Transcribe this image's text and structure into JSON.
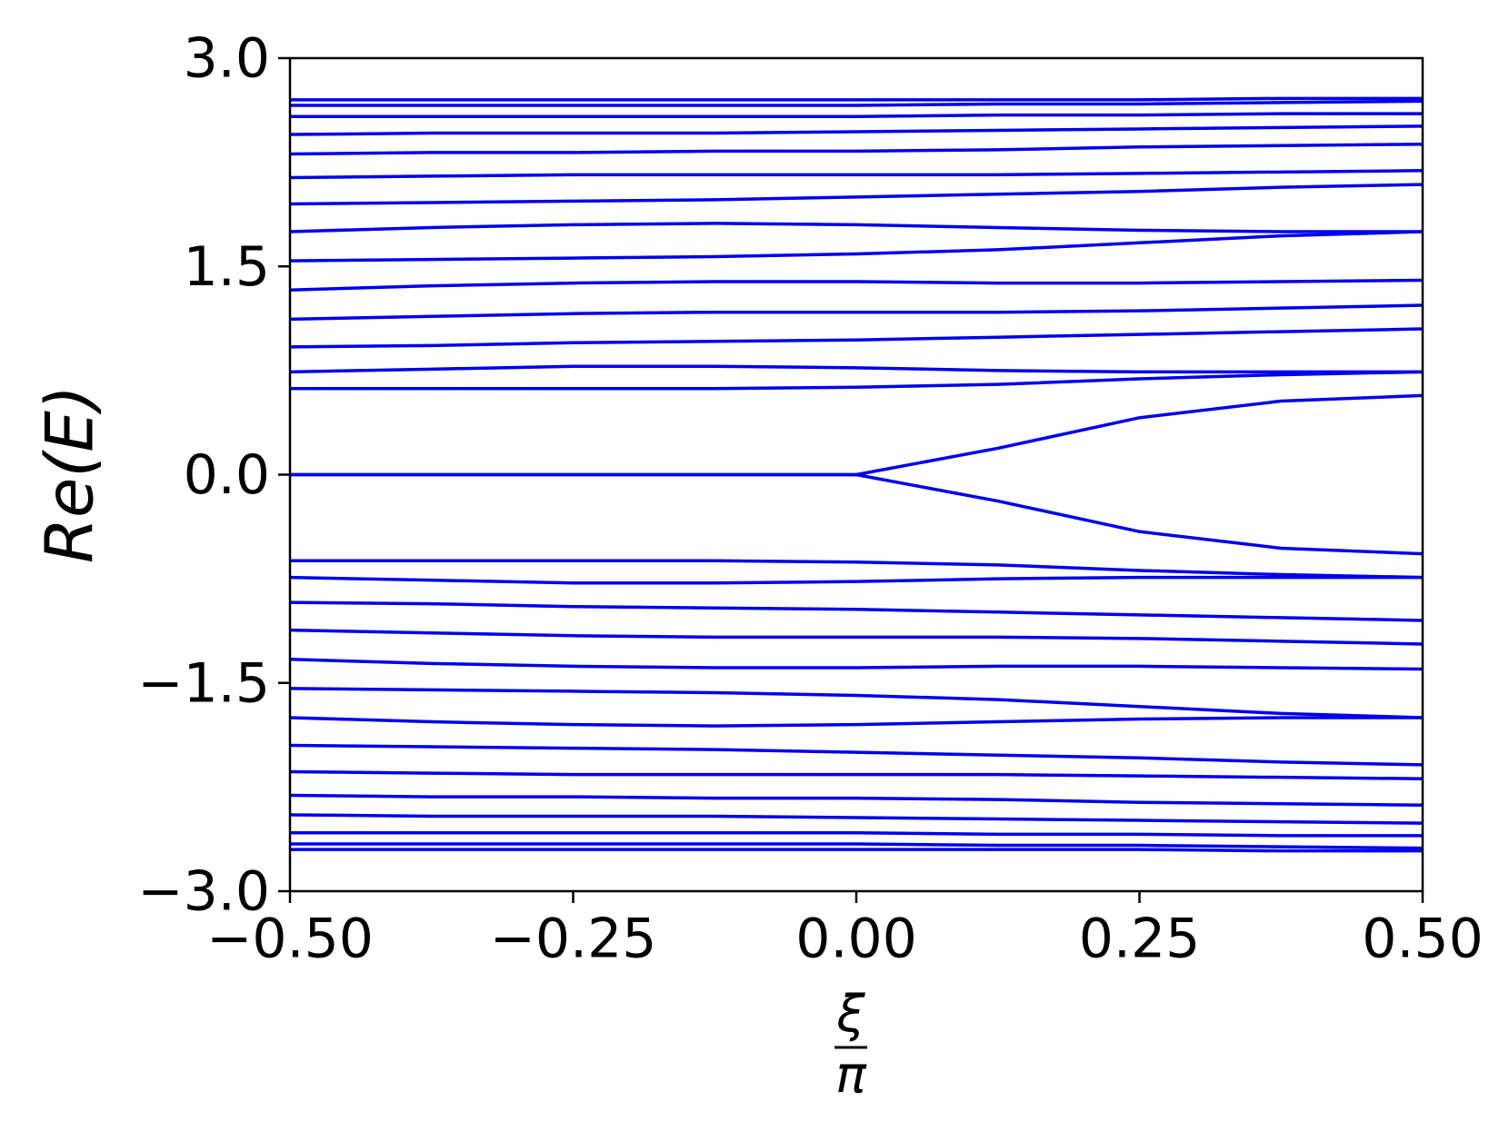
{
  "chart_data": {
    "type": "line",
    "ylabel": "Re(E)",
    "xlabel": {
      "numerator": "ξ",
      "denominator": "π"
    },
    "x": [
      -0.5,
      -0.375,
      -0.25,
      -0.125,
      0,
      0.125,
      0.25,
      0.375,
      0.5
    ],
    "xlim": [
      -0.5,
      0.5
    ],
    "ylim": [
      -3.0,
      3.0
    ],
    "xticks": [
      {
        "value": -0.5,
        "label": "−0.50"
      },
      {
        "value": -0.25,
        "label": "−0.25"
      },
      {
        "value": 0,
        "label": "0.00"
      },
      {
        "value": 0.25,
        "label": "0.25"
      },
      {
        "value": 0.5,
        "label": "0.50"
      }
    ],
    "yticks": [
      {
        "value": -3.0,
        "label": "−3.0"
      },
      {
        "value": -1.5,
        "label": "−1.5"
      },
      {
        "value": 0,
        "label": "0.0"
      },
      {
        "value": 1.5,
        "label": "1.5"
      },
      {
        "value": 3.0,
        "label": "3.0"
      }
    ],
    "grid": false,
    "series": [
      {
        "color": "#0000ee",
        "values": [
          2.7,
          2.7,
          2.7,
          2.7,
          2.7,
          2.7,
          2.7,
          2.71,
          2.71
        ]
      },
      {
        "color": "#0000ee",
        "values": [
          2.66,
          2.66,
          2.66,
          2.66,
          2.66,
          2.67,
          2.67,
          2.68,
          2.69
        ]
      },
      {
        "color": "#0000ee",
        "values": [
          2.58,
          2.58,
          2.58,
          2.58,
          2.58,
          2.59,
          2.59,
          2.6,
          2.6
        ]
      },
      {
        "color": "#0000ee",
        "values": [
          2.45,
          2.46,
          2.46,
          2.46,
          2.47,
          2.48,
          2.49,
          2.5,
          2.51
        ]
      },
      {
        "color": "#0000ee",
        "values": [
          2.31,
          2.32,
          2.32,
          2.33,
          2.33,
          2.34,
          2.36,
          2.37,
          2.38
        ]
      },
      {
        "color": "#0000ee",
        "values": [
          2.14,
          2.15,
          2.16,
          2.16,
          2.16,
          2.16,
          2.17,
          2.18,
          2.19
        ]
      },
      {
        "color": "#0000ee",
        "values": [
          1.95,
          1.96,
          1.97,
          1.98,
          2.0,
          2.02,
          2.04,
          2.07,
          2.09
        ]
      },
      {
        "color": "#0000ee",
        "values": [
          1.75,
          1.78,
          1.8,
          1.81,
          1.8,
          1.78,
          1.76,
          1.75,
          1.75
        ]
      },
      {
        "color": "#0000ee",
        "values": [
          1.54,
          1.55,
          1.56,
          1.57,
          1.59,
          1.62,
          1.67,
          1.72,
          1.75
        ]
      },
      {
        "color": "#0000ee",
        "values": [
          1.33,
          1.36,
          1.38,
          1.39,
          1.39,
          1.38,
          1.38,
          1.39,
          1.4
        ]
      },
      {
        "color": "#0000ee",
        "values": [
          1.12,
          1.14,
          1.16,
          1.17,
          1.17,
          1.17,
          1.18,
          1.2,
          1.22
        ]
      },
      {
        "color": "#0000ee",
        "values": [
          0.92,
          0.93,
          0.95,
          0.96,
          0.97,
          0.99,
          1.01,
          1.03,
          1.05
        ]
      },
      {
        "color": "#0000ee",
        "values": [
          0.74,
          0.76,
          0.78,
          0.78,
          0.77,
          0.75,
          0.74,
          0.74,
          0.74
        ]
      },
      {
        "color": "#0000ee",
        "values": [
          0.62,
          0.62,
          0.62,
          0.62,
          0.63,
          0.65,
          0.69,
          0.72,
          0.74
        ]
      },
      {
        "color": "#0000ee",
        "values": [
          0,
          0,
          0,
          0,
          0,
          0.19,
          0.41,
          0.53,
          0.57
        ]
      },
      {
        "color": "#0000ee",
        "values": [
          0,
          0,
          0,
          0,
          0,
          -0.19,
          -0.41,
          -0.53,
          -0.57
        ]
      },
      {
        "color": "#0000ee",
        "values": [
          -0.62,
          -0.62,
          -0.62,
          -0.62,
          -0.63,
          -0.65,
          -0.69,
          -0.72,
          -0.74
        ]
      },
      {
        "color": "#0000ee",
        "values": [
          -0.74,
          -0.76,
          -0.78,
          -0.78,
          -0.77,
          -0.75,
          -0.74,
          -0.74,
          -0.74
        ]
      },
      {
        "color": "#0000ee",
        "values": [
          -0.92,
          -0.93,
          -0.95,
          -0.96,
          -0.97,
          -0.99,
          -1.01,
          -1.03,
          -1.05
        ]
      },
      {
        "color": "#0000ee",
        "values": [
          -1.12,
          -1.14,
          -1.16,
          -1.17,
          -1.17,
          -1.17,
          -1.18,
          -1.2,
          -1.22
        ]
      },
      {
        "color": "#0000ee",
        "values": [
          -1.33,
          -1.36,
          -1.38,
          -1.39,
          -1.39,
          -1.38,
          -1.38,
          -1.39,
          -1.4
        ]
      },
      {
        "color": "#0000ee",
        "values": [
          -1.54,
          -1.55,
          -1.56,
          -1.57,
          -1.59,
          -1.62,
          -1.67,
          -1.72,
          -1.75
        ]
      },
      {
        "color": "#0000ee",
        "values": [
          -1.75,
          -1.78,
          -1.8,
          -1.81,
          -1.8,
          -1.78,
          -1.76,
          -1.75,
          -1.75
        ]
      },
      {
        "color": "#0000ee",
        "values": [
          -1.95,
          -1.96,
          -1.97,
          -1.98,
          -2.0,
          -2.02,
          -2.04,
          -2.07,
          -2.09
        ]
      },
      {
        "color": "#0000ee",
        "values": [
          -2.14,
          -2.15,
          -2.16,
          -2.16,
          -2.16,
          -2.16,
          -2.17,
          -2.18,
          -2.19
        ]
      },
      {
        "color": "#0000ee",
        "values": [
          -2.31,
          -2.32,
          -2.32,
          -2.33,
          -2.33,
          -2.34,
          -2.36,
          -2.37,
          -2.38
        ]
      },
      {
        "color": "#0000ee",
        "values": [
          -2.45,
          -2.46,
          -2.46,
          -2.46,
          -2.47,
          -2.48,
          -2.49,
          -2.5,
          -2.51
        ]
      },
      {
        "color": "#0000ee",
        "values": [
          -2.58,
          -2.58,
          -2.58,
          -2.58,
          -2.58,
          -2.59,
          -2.59,
          -2.6,
          -2.6
        ]
      },
      {
        "color": "#0000ee",
        "values": [
          -2.66,
          -2.66,
          -2.66,
          -2.66,
          -2.66,
          -2.67,
          -2.67,
          -2.68,
          -2.69
        ]
      },
      {
        "color": "#0000ee",
        "values": [
          -2.7,
          -2.7,
          -2.7,
          -2.7,
          -2.7,
          -2.7,
          -2.7,
          -2.71,
          -2.71
        ]
      }
    ]
  }
}
